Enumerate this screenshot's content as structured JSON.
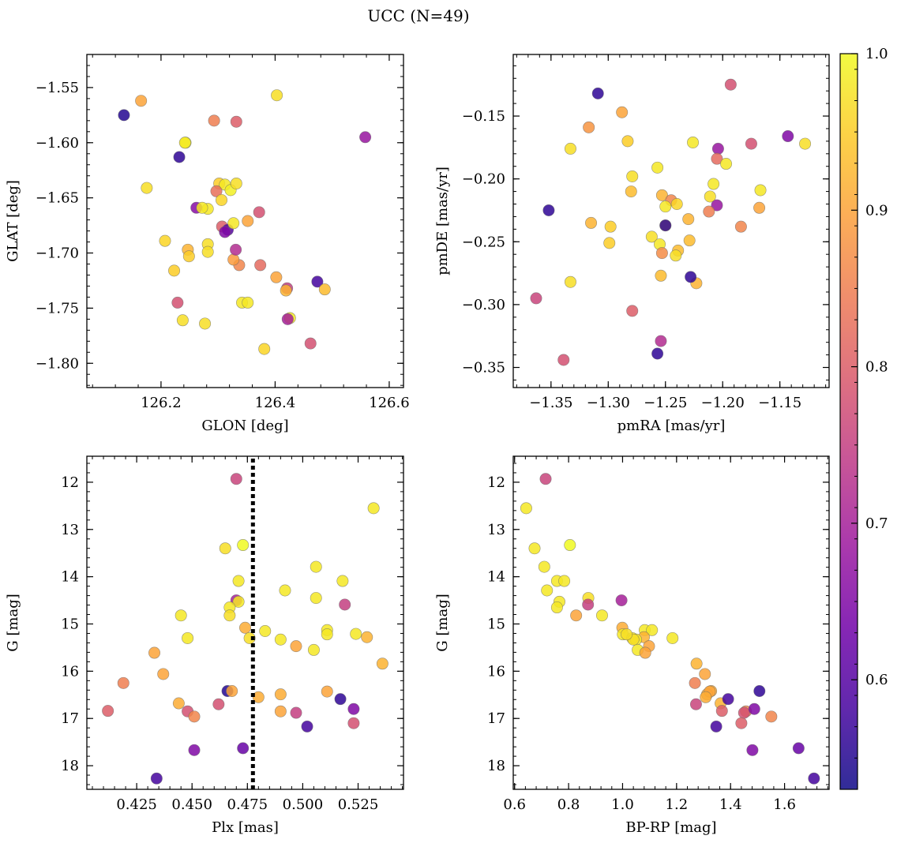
{
  "figure": {
    "title": "UCC (N=49)"
  },
  "colorbar": {
    "min": 0.53,
    "max": 1.0,
    "ticks": [
      0.6,
      0.7,
      0.8,
      0.9,
      1.0
    ],
    "tick_labels": [
      "0.6",
      "0.7",
      "0.8",
      "0.9",
      "1.0"
    ],
    "colormap": "plasma",
    "colormap_stops": [
      "#0d0887",
      "#46039f",
      "#7201a8",
      "#9c179e",
      "#bd3786",
      "#d8576b",
      "#ed7953",
      "#fb9f3a",
      "#fdca26",
      "#f0f921"
    ]
  },
  "chart_data": [
    {
      "id": "glon-glat",
      "type": "scatter",
      "xlabel": "GLON [deg]",
      "ylabel": "GLAT [deg]",
      "xlim": [
        126.07,
        126.625
      ],
      "ylim": [
        -1.822,
        -1.52
      ],
      "xticks": [
        126.2,
        126.4,
        126.6
      ],
      "xtick_labels": [
        "126.2",
        "126.4",
        "126.6"
      ],
      "yticks": [
        -1.55,
        -1.6,
        -1.65,
        -1.7,
        -1.75,
        -1.8
      ],
      "ytick_labels": [
        "−1.55",
        "−1.60",
        "−1.65",
        "−1.70",
        "−1.75",
        "−1.80"
      ],
      "x": [
        126.135,
        126.165,
        126.403,
        126.293,
        126.332,
        126.243,
        126.558,
        126.232,
        126.175,
        126.302,
        126.312,
        126.322,
        126.332,
        126.297,
        126.262,
        126.282,
        126.372,
        126.352,
        126.307,
        126.317,
        126.337,
        126.207,
        126.247,
        126.282,
        126.282,
        126.249,
        126.327,
        126.342,
        126.374,
        126.223,
        126.402,
        126.421,
        126.474,
        126.487,
        126.352,
        126.229,
        126.419,
        126.238,
        126.426,
        126.277,
        126.422,
        126.462,
        126.381,
        126.272,
        126.306,
        126.242,
        126.312,
        126.331,
        126.327
      ],
      "y": [
        -1.575,
        -1.562,
        -1.557,
        -1.58,
        -1.581,
        -1.6,
        -1.595,
        -1.613,
        -1.641,
        -1.637,
        -1.638,
        -1.643,
        -1.637,
        -1.644,
        -1.659,
        -1.66,
        -1.663,
        -1.671,
        -1.676,
        -1.679,
        -1.711,
        -1.689,
        -1.697,
        -1.692,
        -1.699,
        -1.703,
        -1.706,
        -1.745,
        -1.711,
        -1.716,
        -1.722,
        -1.732,
        -1.726,
        -1.733,
        -1.745,
        -1.745,
        -1.734,
        -1.761,
        -1.759,
        -1.764,
        -1.76,
        -1.782,
        -1.787,
        -1.659,
        -1.652,
        -1.6,
        -1.681,
        -1.697,
        -1.673
      ],
      "c": [
        0.55,
        0.9,
        0.97,
        0.85,
        0.8,
        1.0,
        0.68,
        0.56,
        0.97,
        0.95,
        0.98,
        0.99,
        0.97,
        0.83,
        0.66,
        0.98,
        0.78,
        0.9,
        0.8,
        0.6,
        0.86,
        0.96,
        0.92,
        0.97,
        0.97,
        0.95,
        0.89,
        0.98,
        0.82,
        0.95,
        0.9,
        0.75,
        0.58,
        0.93,
        0.98,
        0.78,
        0.92,
        0.97,
        0.98,
        0.97,
        0.7,
        0.78,
        0.96,
        0.98,
        0.96,
        0.98,
        0.65,
        0.72,
        0.98
      ]
    },
    {
      "id": "pm",
      "type": "scatter",
      "xlabel": "pmRA [mas/yr]",
      "ylabel": "pmDE [mas/yr]",
      "xlim": [
        -1.383,
        -1.107
      ],
      "ylim": [
        -0.366,
        -0.101
      ],
      "xticks": [
        -1.35,
        -1.3,
        -1.25,
        -1.2,
        -1.15
      ],
      "xtick_labels": [
        "−1.35",
        "−1.30",
        "−1.25",
        "−1.20",
        "−1.15"
      ],
      "yticks": [
        -0.15,
        -0.2,
        -0.25,
        -0.3,
        -0.35
      ],
      "ytick_labels": [
        "−0.15",
        "−0.20",
        "−0.25",
        "−0.30",
        "−0.35"
      ],
      "x": [
        -1.309,
        -1.193,
        -1.288,
        -1.317,
        -1.143,
        -1.128,
        -1.283,
        -1.226,
        -1.175,
        -1.204,
        -1.333,
        -1.205,
        -1.197,
        -1.279,
        -1.257,
        -1.208,
        -1.167,
        -1.28,
        -1.253,
        -1.245,
        -1.24,
        -1.211,
        -1.23,
        -1.25,
        -1.205,
        -1.168,
        -1.212,
        -1.184,
        -1.315,
        -1.298,
        -1.299,
        -1.262,
        -1.25,
        -1.229,
        -1.255,
        -1.239,
        -1.253,
        -1.241,
        -1.254,
        -1.223,
        -1.228,
        -1.333,
        -1.363,
        -1.352,
        -1.279,
        -1.254,
        -1.257,
        -1.339,
        -1.25
      ],
      "y": [
        -0.132,
        -0.125,
        -0.147,
        -0.159,
        -0.166,
        -0.172,
        -0.17,
        -0.171,
        -0.172,
        -0.176,
        -0.176,
        -0.184,
        -0.188,
        -0.198,
        -0.191,
        -0.204,
        -0.209,
        -0.21,
        -0.213,
        -0.217,
        -0.22,
        -0.214,
        -0.232,
        -0.222,
        -0.221,
        -0.223,
        -0.226,
        -0.238,
        -0.235,
        -0.238,
        -0.251,
        -0.246,
        -0.237,
        -0.249,
        -0.252,
        -0.257,
        -0.259,
        -0.261,
        -0.277,
        -0.283,
        -0.278,
        -0.282,
        -0.295,
        -0.225,
        -0.305,
        -0.329,
        -0.339,
        -0.344,
        -0.237
      ],
      "c": [
        0.56,
        0.78,
        0.9,
        0.88,
        0.65,
        0.97,
        0.95,
        0.98,
        0.78,
        0.68,
        0.97,
        0.82,
        0.98,
        0.97,
        0.98,
        0.98,
        0.98,
        0.93,
        0.92,
        0.86,
        0.96,
        0.97,
        0.92,
        0.98,
        0.68,
        0.9,
        0.85,
        0.86,
        0.92,
        0.95,
        0.95,
        0.97,
        0.97,
        0.93,
        0.98,
        0.93,
        0.87,
        0.97,
        0.93,
        0.92,
        0.56,
        0.97,
        0.76,
        0.56,
        0.8,
        0.72,
        0.56,
        0.78,
        0.56
      ]
    },
    {
      "id": "plx-g",
      "type": "scatter",
      "xlabel": "Plx [mas]",
      "ylabel": "G [mag]",
      "xlim": [
        0.4025,
        0.5455
      ],
      "ylim": [
        18.5,
        11.45
      ],
      "xticks": [
        0.425,
        0.45,
        0.475,
        0.5,
        0.525
      ],
      "xtick_labels": [
        "0.425",
        "0.450",
        "0.475",
        "0.500",
        "0.525"
      ],
      "yticks": [
        12,
        13,
        14,
        15,
        16,
        17,
        18
      ],
      "ytick_labels": [
        "12",
        "13",
        "14",
        "15",
        "16",
        "17",
        "18"
      ],
      "vline": 0.4775,
      "x": [
        0.47,
        0.532,
        0.465,
        0.473,
        0.506,
        0.492,
        0.471,
        0.518,
        0.506,
        0.47,
        0.471,
        0.519,
        0.467,
        0.445,
        0.467,
        0.474,
        0.511,
        0.448,
        0.483,
        0.524,
        0.511,
        0.529,
        0.476,
        0.49,
        0.497,
        0.505,
        0.433,
        0.536,
        0.437,
        0.419,
        0.466,
        0.468,
        0.511,
        0.48,
        0.49,
        0.444,
        0.462,
        0.517,
        0.523,
        0.412,
        0.448,
        0.451,
        0.49,
        0.497,
        0.523,
        0.502,
        0.451,
        0.473,
        0.434
      ],
      "y": [
        11.93,
        12.55,
        13.4,
        13.33,
        13.79,
        14.29,
        14.09,
        14.09,
        14.45,
        14.5,
        14.53,
        14.59,
        14.65,
        14.82,
        14.82,
        15.08,
        15.13,
        15.3,
        15.15,
        15.21,
        15.22,
        15.28,
        15.3,
        15.33,
        15.47,
        15.55,
        15.61,
        15.84,
        16.06,
        16.25,
        16.42,
        16.42,
        16.43,
        16.55,
        16.49,
        16.68,
        16.7,
        16.59,
        16.8,
        16.84,
        16.85,
        16.96,
        16.85,
        16.88,
        17.1,
        17.17,
        17.67,
        17.63,
        18.27
      ],
      "c": [
        0.76,
        0.98,
        0.97,
        1.0,
        0.98,
        0.98,
        0.98,
        0.98,
        0.98,
        0.7,
        0.98,
        0.75,
        0.98,
        0.98,
        0.97,
        0.91,
        0.98,
        0.98,
        0.98,
        0.98,
        0.98,
        0.92,
        0.97,
        0.98,
        0.9,
        0.98,
        0.9,
        0.92,
        0.9,
        0.85,
        0.55,
        0.9,
        0.9,
        0.91,
        0.91,
        0.91,
        0.78,
        0.56,
        0.65,
        0.8,
        0.78,
        0.86,
        0.9,
        0.75,
        0.78,
        0.58,
        0.65,
        0.62,
        0.58
      ]
    },
    {
      "id": "color-g",
      "type": "scatter",
      "xlabel": "BP-RP [mag]",
      "ylabel": "G [mag]",
      "xlim": [
        0.595,
        1.765
      ],
      "ylim": [
        18.5,
        11.45
      ],
      "xticks": [
        0.6,
        0.8,
        1.0,
        1.2,
        1.4,
        1.6
      ],
      "xtick_labels": [
        "0.6",
        "0.8",
        "1.0",
        "1.2",
        "1.4",
        "1.6"
      ],
      "yticks": [
        12,
        13,
        14,
        15,
        16,
        17,
        18
      ],
      "ytick_labels": [
        "12",
        "13",
        "14",
        "15",
        "16",
        "17",
        "18"
      ],
      "x": [
        0.715,
        0.643,
        0.674,
        0.805,
        0.71,
        0.757,
        0.784,
        0.72,
        0.873,
        0.996,
        0.766,
        0.872,
        0.757,
        0.828,
        0.924,
        0.999,
        1.001,
        1.082,
        1.109,
        1.036,
        1.079,
        1.185,
        1.05,
        1.098,
        1.056,
        1.084,
        1.274,
        1.305,
        1.268,
        1.363,
        1.328,
        1.313,
        1.507,
        1.391,
        1.323,
        1.368,
        1.457,
        1.45,
        1.488,
        1.551,
        1.272,
        1.44,
        1.347,
        1.481,
        1.652,
        1.709,
        1.308,
        1.04,
        1.015
      ],
      "y": [
        11.93,
        12.55,
        13.4,
        13.33,
        13.79,
        14.09,
        14.09,
        14.29,
        14.45,
        14.5,
        14.53,
        14.59,
        14.65,
        14.82,
        14.82,
        15.08,
        15.22,
        15.13,
        15.13,
        15.3,
        15.28,
        15.3,
        15.33,
        15.47,
        15.55,
        15.61,
        15.84,
        16.06,
        16.25,
        16.68,
        16.42,
        16.49,
        16.42,
        16.59,
        16.43,
        16.84,
        16.85,
        16.88,
        16.8,
        16.96,
        16.7,
        17.1,
        17.17,
        17.67,
        17.63,
        18.27,
        16.55,
        15.33,
        15.22
      ],
      "c": [
        0.76,
        0.98,
        0.98,
        1.0,
        0.98,
        0.98,
        0.98,
        0.98,
        0.97,
        0.7,
        0.98,
        0.75,
        0.98,
        0.9,
        0.98,
        0.91,
        0.98,
        0.98,
        0.98,
        0.98,
        0.92,
        0.98,
        0.98,
        0.9,
        0.98,
        0.9,
        0.92,
        0.9,
        0.85,
        0.92,
        0.91,
        0.91,
        0.56,
        0.58,
        0.9,
        0.8,
        0.86,
        0.78,
        0.65,
        0.86,
        0.76,
        0.8,
        0.58,
        0.65,
        0.62,
        0.58,
        0.91,
        0.97,
        0.97
      ]
    }
  ]
}
